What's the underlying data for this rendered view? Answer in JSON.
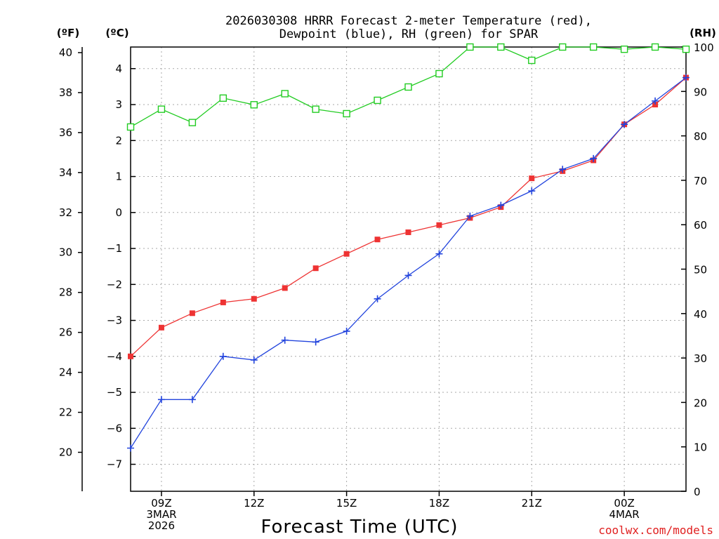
{
  "chart_data": {
    "type": "line",
    "title": [
      "2026030308 HRRR Forecast 2-meter Temperature (red),",
      "Dewpoint (blue), RH (green) for SPAR"
    ],
    "xlabel": "Forecast Time (UTC)",
    "credit": "coolwx.com/models",
    "units": {
      "fahrenheit": "(ºF)",
      "celsius": "(ºC)",
      "rh": "(RH)"
    },
    "x_hours": [
      8,
      9,
      10,
      11,
      12,
      13,
      14,
      15,
      16,
      17,
      18,
      19,
      20,
      21,
      22,
      23,
      24,
      25,
      26
    ],
    "xlim": [
      8,
      26
    ],
    "x_ticks": [
      {
        "hour": 9,
        "lines": [
          "09Z",
          "3MAR",
          "2026"
        ]
      },
      {
        "hour": 12,
        "lines": [
          "12Z"
        ]
      },
      {
        "hour": 15,
        "lines": [
          "15Z"
        ]
      },
      {
        "hour": 18,
        "lines": [
          "18Z"
        ]
      },
      {
        "hour": 21,
        "lines": [
          "21Z"
        ]
      },
      {
        "hour": 24,
        "lines": [
          "00Z",
          "4MAR"
        ]
      }
    ],
    "celsius_axis": {
      "ylim": [
        -7.75,
        4.6
      ],
      "ticks": [
        4,
        3,
        2,
        1,
        0,
        -1,
        -2,
        -3,
        -4,
        -5,
        -6,
        -7
      ],
      "tick_labels": [
        "4",
        "3",
        "2",
        "1",
        "0",
        "−1",
        "−2",
        "−3",
        "−4",
        "−5",
        "−6",
        "−7"
      ]
    },
    "fahrenheit_axis": {
      "ticks": [
        40,
        38,
        36,
        34,
        32,
        30,
        28,
        26,
        24,
        22,
        20
      ],
      "tick_labels": [
        "40",
        "38",
        "36",
        "34",
        "32",
        "30",
        "28",
        "26",
        "24",
        "22",
        "20"
      ]
    },
    "rh_axis": {
      "ylim": [
        0,
        100
      ],
      "ticks": [
        100,
        90,
        80,
        70,
        60,
        50,
        40,
        30,
        20,
        10,
        0
      ],
      "tick_labels": [
        "100",
        "90",
        "80",
        "70",
        "60",
        "50",
        "40",
        "30",
        "20",
        "10",
        "0"
      ]
    },
    "series": [
      {
        "name": "Temperature",
        "axis": "celsius",
        "color": "#ee3333",
        "marker": "filled-square",
        "values": [
          -4.0,
          -3.2,
          -2.8,
          -2.5,
          -2.4,
          -2.1,
          -1.55,
          -1.15,
          -0.75,
          -0.55,
          -0.35,
          -0.15,
          0.15,
          0.95,
          1.15,
          1.45,
          2.45,
          3.0,
          3.75
        ]
      },
      {
        "name": "Dewpoint",
        "axis": "celsius",
        "color": "#2244dd",
        "marker": "plus",
        "values": [
          -6.55,
          -5.2,
          -5.2,
          -4.0,
          -4.1,
          -3.55,
          -3.6,
          -3.3,
          -2.4,
          -1.75,
          -1.15,
          -0.1,
          0.2,
          0.6,
          1.2,
          1.5,
          2.45,
          3.1,
          3.75
        ]
      },
      {
        "name": "RH",
        "axis": "rh",
        "color": "#22cc22",
        "marker": "open-square",
        "values": [
          82,
          86,
          83,
          88.5,
          87,
          89.5,
          86,
          85,
          88,
          91,
          94,
          100,
          100,
          97,
          100,
          100,
          99.5,
          100,
          99.5
        ]
      }
    ]
  }
}
